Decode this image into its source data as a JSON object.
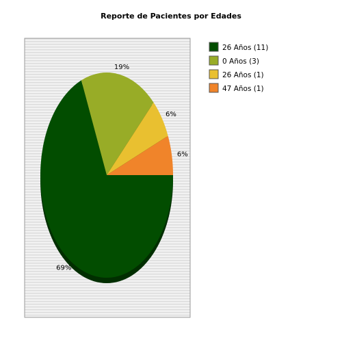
{
  "chart_data": {
    "type": "pie",
    "title": "Reporte de Pacientes por Edades",
    "slices": [
      {
        "label": "26 Años (11)",
        "value": 11,
        "percent_label": "69%",
        "color": "#024d00"
      },
      {
        "label": "0 Años (3)",
        "value": 3,
        "percent_label": "19%",
        "color": "#98ac27"
      },
      {
        "label": "26 Años (1)",
        "value": 1,
        "percent_label": "6%",
        "color": "#e9c030"
      },
      {
        "label": "47 Años (1)",
        "value": 1,
        "percent_label": "6%",
        "color": "#f0842a"
      }
    ],
    "legend_position": "top-right",
    "plot_background": "striped-gray"
  }
}
